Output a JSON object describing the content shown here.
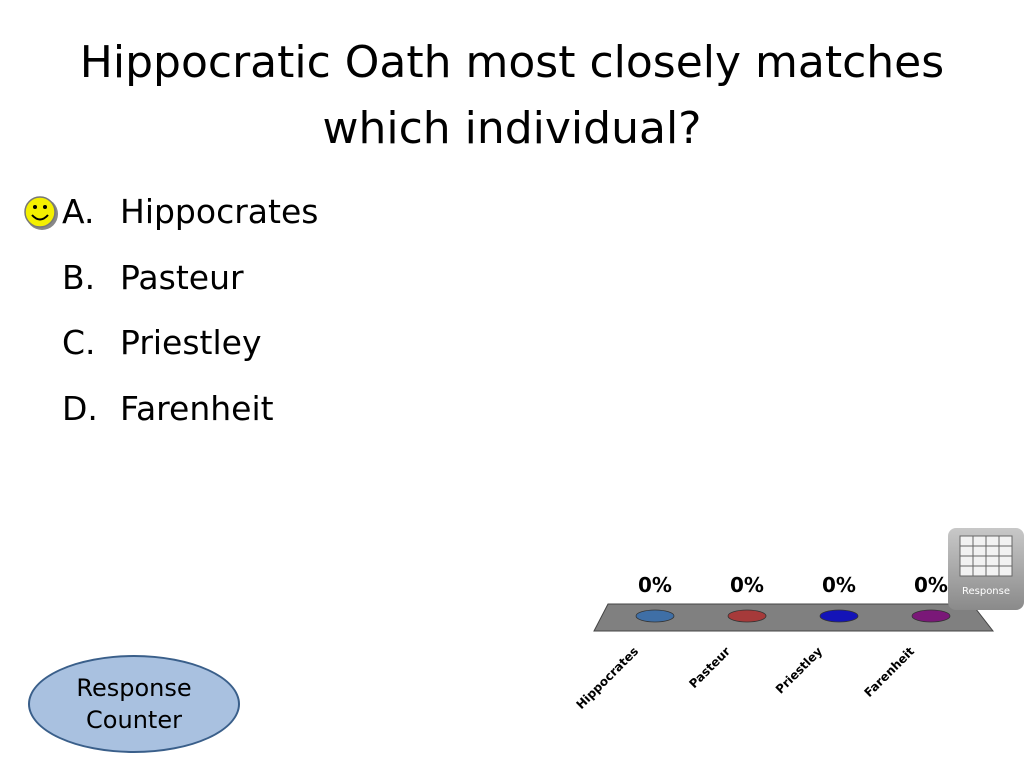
{
  "title": "Hippocratic Oath most closely matches which individual?",
  "options": [
    {
      "letter": "A.",
      "text": "Hippocrates"
    },
    {
      "letter": "B.",
      "text": "Pasteur"
    },
    {
      "letter": "C.",
      "text": "Priestley"
    },
    {
      "letter": "D.",
      "text": "Farenheit"
    }
  ],
  "response_button": "Response",
  "response_counter": "Response Counter",
  "chart_data": {
    "type": "bar",
    "categories": [
      "Hippocrates",
      "Pasteur",
      "Priestley",
      "Farenheit"
    ],
    "values": [
      0,
      0,
      0,
      0
    ],
    "value_labels": [
      "0%",
      "0%",
      "0%",
      "0%"
    ],
    "colors": [
      "#3f6fa6",
      "#a63a3a",
      "#1414b8",
      "#7a1878"
    ]
  }
}
